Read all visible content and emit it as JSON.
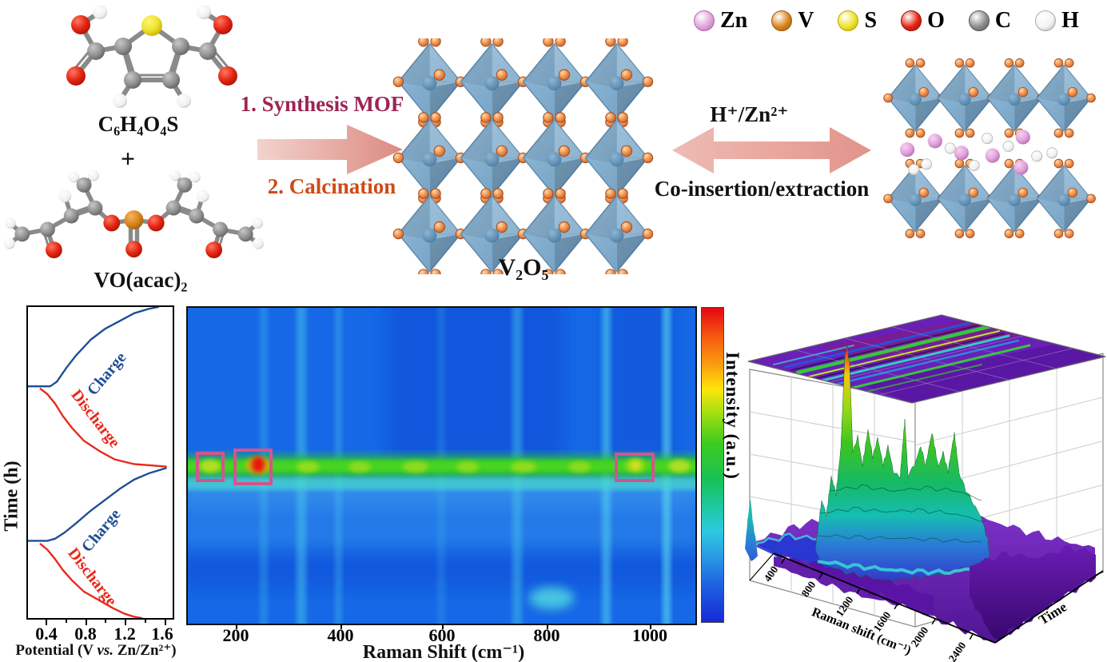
{
  "legend": {
    "items": [
      {
        "label": "Zn",
        "color": "#e2a3dc",
        "edge": "#b268ac"
      },
      {
        "label": "V",
        "color": "#da851e",
        "edge": "#9c5a10"
      },
      {
        "label": "S",
        "color": "#efe22e",
        "edge": "#b8a800"
      },
      {
        "label": "O",
        "color": "#e42513",
        "edge": "#991006"
      },
      {
        "label": "C",
        "color": "#8d8d8d",
        "edge": "#555555"
      },
      {
        "label": "H",
        "color": "#f4f4f4",
        "edge": "#aaaaaa"
      }
    ]
  },
  "scheme": {
    "reactant1": "C₆H₄O₄S",
    "plus": "+",
    "reactant2": "VO(acac)₂",
    "step1": "1. Synthesis MOF",
    "step2": "2. Calcination",
    "product": "V₂O₅",
    "ions": "H⁺/Zn²⁺",
    "process": "Co-insertion/extraction",
    "colors": {
      "step1": "#9c2552",
      "step2": "#cd4b17",
      "arrow_light": "#f3d3cd",
      "arrow_dark": "#db8a80"
    }
  },
  "chart_data": [
    {
      "id": "charge-discharge-curves",
      "type": "line",
      "xlabel_parts": [
        "Potential (V ",
        "vs.",
        " Zn/Zn²⁺)"
      ],
      "ylabel": "Time (h)",
      "xticks": [
        0.4,
        0.8,
        1.2,
        1.6
      ],
      "xlim": [
        0.2,
        1.7
      ],
      "ylim_note": "time axis unlabeled; time increases downward; two consecutive charge/discharge cycles",
      "grid": false,
      "series": [
        {
          "name": "Charge",
          "color": "#1d4e94",
          "segments": [
            [
              [
                0.2,
                25.5
              ],
              [
                0.43,
                25.5
              ],
              [
                0.5,
                24
              ],
              [
                0.6,
                19.5
              ],
              [
                0.7,
                15.5
              ],
              [
                0.85,
                10.5
              ],
              [
                1.0,
                7
              ],
              [
                1.15,
                4.5
              ],
              [
                1.3,
                2
              ],
              [
                1.45,
                0.6
              ],
              [
                1.55,
                0
              ]
            ],
            [
              [
                1.63,
                51.8
              ],
              [
                1.45,
                53.5
              ],
              [
                1.3,
                55.5
              ],
              [
                1.15,
                58.5
              ],
              [
                1.0,
                62
              ],
              [
                0.85,
                65.5
              ],
              [
                0.7,
                69.5
              ],
              [
                0.58,
                72.5
              ],
              [
                0.48,
                74.5
              ],
              [
                0.4,
                75.2
              ],
              [
                0.2,
                75.2
              ]
            ]
          ]
        },
        {
          "name": "Discharge",
          "color": "#e8281b",
          "segments": [
            [
              [
                0.33,
                26.3
              ],
              [
                0.4,
                28
              ],
              [
                0.48,
                31
              ],
              [
                0.56,
                35
              ],
              [
                0.66,
                39
              ],
              [
                0.78,
                43
              ],
              [
                0.95,
                46.5
              ],
              [
                1.1,
                49
              ],
              [
                1.3,
                50.5
              ],
              [
                1.5,
                51
              ],
              [
                1.63,
                51.3
              ]
            ],
            [
              [
                0.33,
                76.2
              ],
              [
                0.4,
                78
              ],
              [
                0.48,
                81
              ],
              [
                0.56,
                84.5
              ],
              [
                0.66,
                88
              ],
              [
                0.78,
                91.5
              ],
              [
                0.95,
                94.5
              ],
              [
                1.08,
                96.8
              ],
              [
                1.2,
                98.6
              ],
              [
                1.3,
                99.6
              ],
              [
                1.38,
                100
              ]
            ]
          ]
        }
      ]
    },
    {
      "id": "in-situ-raman-map",
      "type": "heatmap",
      "xlabel": "Raman Shift (cm⁻¹)",
      "xticks": [
        200,
        400,
        600,
        800,
        1000
      ],
      "xlim": [
        100,
        1090
      ],
      "colorbar_label": "Intensity (a.u.)",
      "palette": [
        "#0a18d8",
        "#1565e2",
        "#35aee0",
        "#45d8c8",
        "#35c835",
        "#e8e420",
        "#f29016",
        "#e81812"
      ],
      "features": {
        "bright_band": "continuous green intensity band at mid-height across all Raman shifts",
        "hotspot_raman_cm1": 260,
        "highlight_boxes_raman_cm1": [
          [
            140,
            185
          ],
          [
            215,
            300
          ],
          [
            950,
            1020
          ]
        ],
        "vertical_streaks_raman_cm1": [
          330,
          430,
          760,
          930,
          1035
        ],
        "cyan_blob_raman_cm1": 810
      }
    },
    {
      "id": "raman-3d-surface",
      "type": "heatmap",
      "subtype": "3d-surface-with-top-projection",
      "xlabel": "Raman shift (cm⁻¹)",
      "xticks": [
        400,
        800,
        1200,
        1600,
        2000,
        2400
      ],
      "ylabel": "Time",
      "zlabel": "Intensity",
      "notes": "3D waterfall surface: tall red spike near 300-400 cm⁻¹, yellow/green peak cluster 200-1100 cm⁻¹, flat purple/blue baseline elsewhere; purple contour projection with green/cyan streaks on top face"
    }
  ]
}
